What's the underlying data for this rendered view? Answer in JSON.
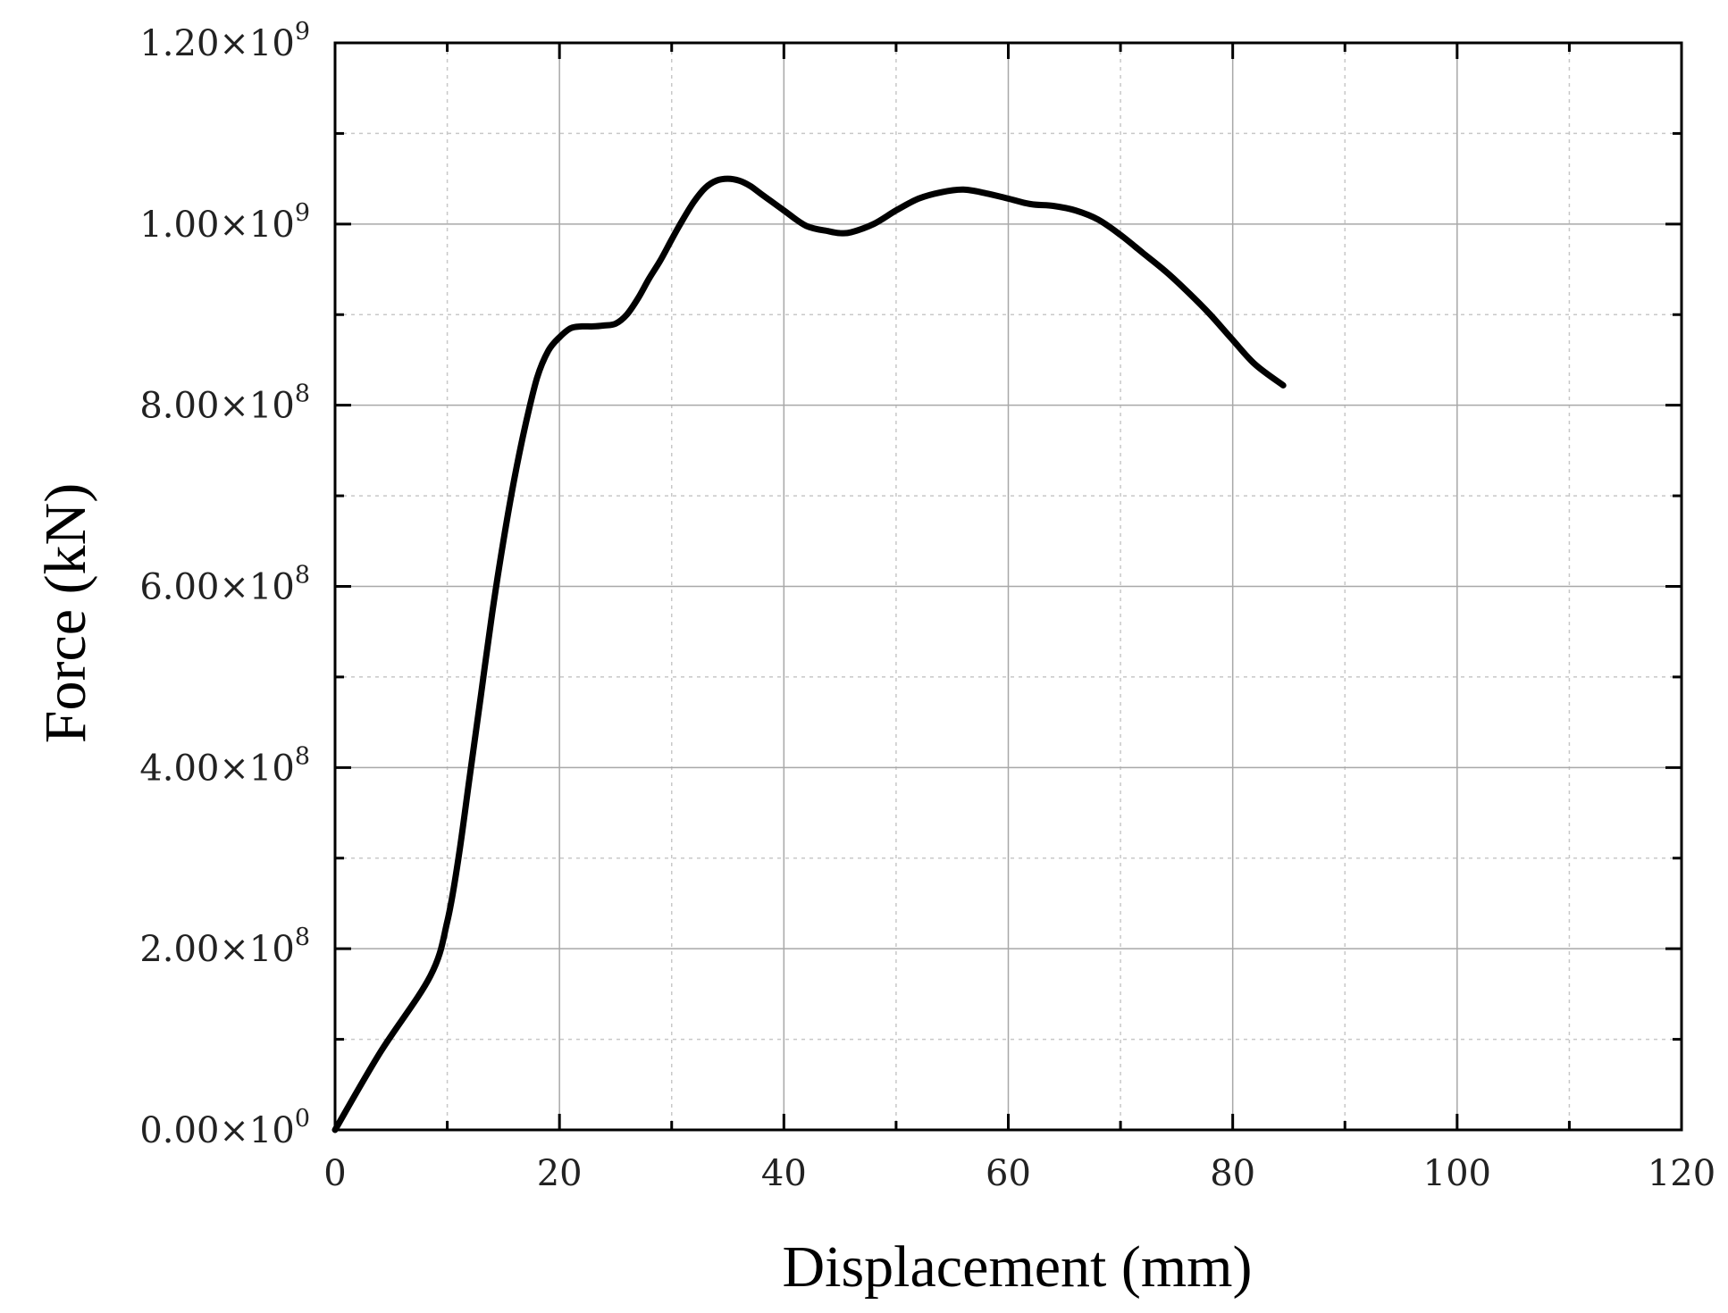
{
  "chart_data": {
    "type": "line",
    "xlabel": "Displacement (mm)",
    "ylabel": "Force (kN)",
    "xlim": [
      0,
      120
    ],
    "ylim": [
      0,
      1200000000
    ],
    "x_ticks": [
      0,
      20,
      40,
      60,
      80,
      100,
      120
    ],
    "x_tick_labels": [
      "0",
      "20",
      "40",
      "60",
      "80",
      "100",
      "120"
    ],
    "y_ticks": [
      0,
      200000000,
      400000000,
      600000000,
      800000000,
      1000000000,
      1200000000
    ],
    "y_tick_labels": [
      {
        "mantissa": "0.00",
        "exponent": "0"
      },
      {
        "mantissa": "2.00",
        "exponent": "8"
      },
      {
        "mantissa": "4.00",
        "exponent": "8"
      },
      {
        "mantissa": "6.00",
        "exponent": "8"
      },
      {
        "mantissa": "8.00",
        "exponent": "8"
      },
      {
        "mantissa": "1.00",
        "exponent": "9"
      },
      {
        "mantissa": "1.20",
        "exponent": "9"
      }
    ],
    "x_minor_step": 10,
    "y_minor_step": 100000000,
    "grid": true,
    "series": [
      {
        "color": "#000000",
        "x": [
          0,
          4,
          8.5,
          10,
          11,
          12,
          13,
          14,
          15,
          16,
          17,
          18,
          19,
          20,
          21,
          22,
          23,
          24,
          25,
          26,
          27,
          28,
          29,
          30,
          31,
          32,
          33,
          34,
          35,
          36,
          37,
          38,
          40,
          42,
          44,
          45,
          46,
          48,
          50,
          52,
          54,
          56,
          58,
          60,
          62,
          64,
          66,
          68,
          70,
          72,
          74,
          76,
          78,
          80,
          82,
          84.5
        ],
        "y": [
          0,
          85000000,
          170000000,
          230000000,
          300000000,
          390000000,
          480000000,
          570000000,
          650000000,
          720000000,
          780000000,
          830000000,
          860000000,
          875000000,
          885000000,
          887000000,
          887000000,
          888000000,
          890000000,
          900000000,
          918000000,
          940000000,
          960000000,
          983000000,
          1005000000,
          1025000000,
          1040000000,
          1048000000,
          1050000000,
          1048000000,
          1042000000,
          1033000000,
          1015000000,
          998000000,
          992000000,
          990000000,
          991000000,
          1000000000,
          1015000000,
          1028000000,
          1035000000,
          1038000000,
          1034000000,
          1028000000,
          1022000000,
          1020000000,
          1015000000,
          1005000000,
          988000000,
          968000000,
          948000000,
          925000000,
          900000000,
          872000000,
          845000000,
          822000000
        ]
      }
    ]
  }
}
